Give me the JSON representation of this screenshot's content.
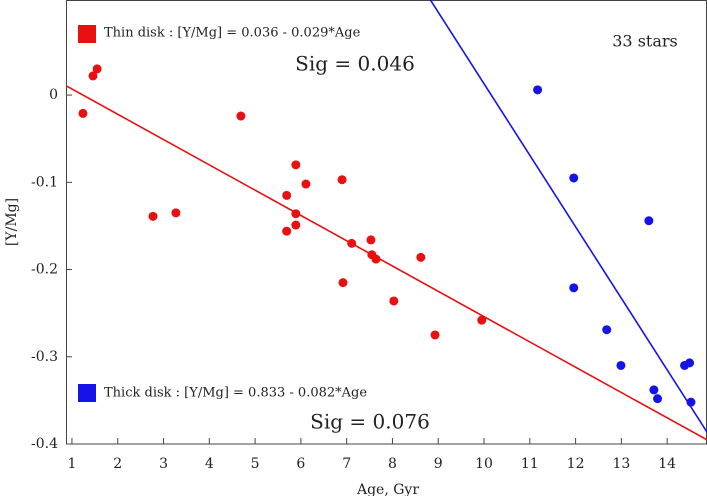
{
  "chart_data": {
    "type": "scatter",
    "xlabel": "Age, Gyr",
    "ylabel": "[Y/Mg]",
    "xlim": [
      0.87,
      14.87
    ],
    "ylim": [
      -0.4,
      0.109
    ],
    "xticks": [
      1,
      2,
      3,
      4,
      5,
      6,
      7,
      8,
      9,
      10,
      11,
      12,
      13,
      14
    ],
    "yticks": [
      0,
      -0.1,
      -0.2,
      -0.3,
      -0.4
    ],
    "annotations": [
      "Sig = 0.046",
      "Sig = 0.076",
      "33 stars"
    ],
    "series": [
      {
        "name": "Thin disk : [Y/Mg] = 0.036 - 0.029*Age",
        "color": "#e81010",
        "fit": {
          "intercept": 0.036,
          "slope": -0.029
        },
        "x": [
          1.24,
          1.46,
          1.55,
          2.77,
          3.27,
          4.69,
          5.69,
          5.69,
          5.89,
          5.89,
          5.89,
          6.11,
          6.9,
          6.92,
          7.11,
          7.53,
          7.55,
          7.64,
          8.03,
          8.62,
          8.93,
          9.95
        ],
        "values": [
          -0.021,
          0.022,
          0.03,
          -0.139,
          -0.135,
          -0.024,
          -0.115,
          -0.156,
          -0.08,
          -0.136,
          -0.149,
          -0.102,
          -0.097,
          -0.215,
          -0.17,
          -0.166,
          -0.183,
          -0.188,
          -0.236,
          -0.186,
          -0.275,
          -0.258
        ]
      },
      {
        "name": "Thick disk : [Y/Mg] = 0.833 - 0.082*Age",
        "color": "#1414e8",
        "fit": {
          "intercept": 0.833,
          "slope": -0.082
        },
        "x": [
          11.17,
          11.96,
          11.96,
          12.68,
          12.99,
          13.6,
          13.71,
          13.79,
          14.38,
          14.49,
          14.52
        ],
        "values": [
          0.006,
          -0.095,
          -0.221,
          -0.269,
          -0.31,
          -0.144,
          -0.338,
          -0.348,
          -0.31,
          -0.307,
          -0.352
        ]
      }
    ]
  }
}
